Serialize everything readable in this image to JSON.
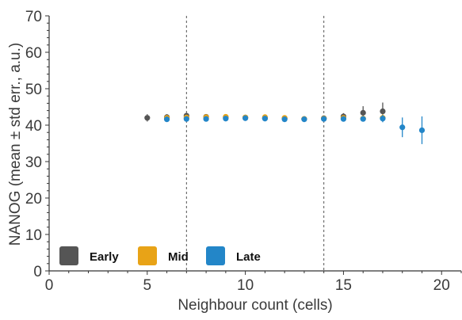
{
  "chart_data": {
    "type": "scatter",
    "title": "",
    "xlabel": "Neighbour count (cells)",
    "ylabel": "NANOG (mean ± std err., a.u.)",
    "xlim": [
      0,
      21
    ],
    "ylim": [
      0,
      70
    ],
    "x_ticks": [
      0,
      5,
      10,
      15,
      20
    ],
    "y_ticks": [
      0,
      10,
      20,
      30,
      40,
      50,
      60,
      70
    ],
    "grid": false,
    "legend_placement": "bottom-left",
    "reference_lines_x": [
      7,
      14
    ],
    "series": [
      {
        "name": "Early",
        "color": "#555555",
        "points": [
          {
            "x": 5,
            "y": 42.0,
            "err": 1.0
          },
          {
            "x": 6,
            "y": 42.2,
            "err": 0.8
          },
          {
            "x": 7,
            "y": 42.6,
            "err": 0.8
          },
          {
            "x": 8,
            "y": 42.3,
            "err": 0.6
          },
          {
            "x": 9,
            "y": 42.2,
            "err": 0.5
          },
          {
            "x": 10,
            "y": 42.1,
            "err": 0.4
          },
          {
            "x": 11,
            "y": 41.9,
            "err": 0.4
          },
          {
            "x": 12,
            "y": 41.8,
            "err": 0.4
          },
          {
            "x": 13,
            "y": 41.7,
            "err": 0.4
          },
          {
            "x": 14,
            "y": 41.9,
            "err": 0.5
          },
          {
            "x": 15,
            "y": 42.4,
            "err": 0.9
          },
          {
            "x": 16,
            "y": 43.4,
            "err": 1.8
          },
          {
            "x": 17,
            "y": 43.8,
            "err": 2.4
          }
        ]
      },
      {
        "name": "Mid",
        "color": "#e8a317",
        "points": [
          {
            "x": 6,
            "y": 42.0,
            "err": 0.6
          },
          {
            "x": 7,
            "y": 42.1,
            "err": 0.5
          },
          {
            "x": 8,
            "y": 42.2,
            "err": 0.4
          },
          {
            "x": 9,
            "y": 42.3,
            "err": 0.4
          },
          {
            "x": 10,
            "y": 42.1,
            "err": 0.3
          },
          {
            "x": 11,
            "y": 42.2,
            "err": 0.3
          },
          {
            "x": 12,
            "y": 42.0,
            "err": 0.3
          },
          {
            "x": 13,
            "y": 41.7,
            "err": 0.3
          },
          {
            "x": 14,
            "y": 41.8,
            "err": 0.4
          },
          {
            "x": 15,
            "y": 42.0,
            "err": 0.5
          },
          {
            "x": 16,
            "y": 41.8,
            "err": 0.7
          },
          {
            "x": 17,
            "y": 42.0,
            "err": 1.0
          }
        ]
      },
      {
        "name": "Late",
        "color": "#2386c8",
        "points": [
          {
            "x": 6,
            "y": 41.6,
            "err": 0.7
          },
          {
            "x": 7,
            "y": 41.7,
            "err": 0.5
          },
          {
            "x": 8,
            "y": 41.7,
            "err": 0.5
          },
          {
            "x": 9,
            "y": 41.8,
            "err": 0.4
          },
          {
            "x": 10,
            "y": 41.9,
            "err": 0.3
          },
          {
            "x": 11,
            "y": 41.8,
            "err": 0.3
          },
          {
            "x": 12,
            "y": 41.6,
            "err": 0.3
          },
          {
            "x": 13,
            "y": 41.6,
            "err": 0.3
          },
          {
            "x": 14,
            "y": 41.7,
            "err": 0.4
          },
          {
            "x": 15,
            "y": 41.7,
            "err": 0.5
          },
          {
            "x": 16,
            "y": 41.7,
            "err": 0.6
          },
          {
            "x": 17,
            "y": 41.8,
            "err": 1.0
          },
          {
            "x": 18,
            "y": 39.4,
            "err": 2.7
          },
          {
            "x": 19,
            "y": 38.6,
            "err": 3.8
          }
        ]
      }
    ]
  }
}
